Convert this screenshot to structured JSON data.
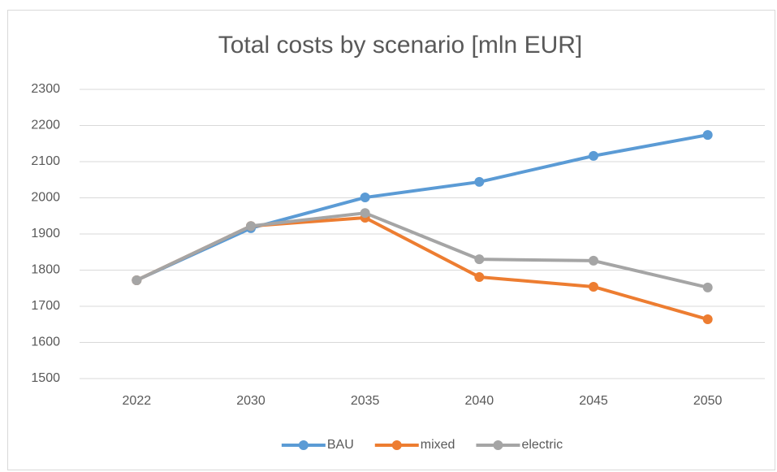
{
  "chart_data": {
    "type": "line",
    "title": "Total costs by scenario [mln EUR]",
    "categories": [
      "2022",
      "2030",
      "2035",
      "2040",
      "2045",
      "2050"
    ],
    "series": [
      {
        "name": "BAU",
        "color": "#5b9bd5",
        "values": [
          1772,
          1916,
          2001,
          2044,
          2116,
          2174
        ]
      },
      {
        "name": "mixed",
        "color": "#ed7d31",
        "values": [
          1772,
          1922,
          1945,
          1781,
          1754,
          1664
        ]
      },
      {
        "name": "electric",
        "color": "#a5a5a5",
        "values": [
          1772,
          1922,
          1958,
          1830,
          1826,
          1752
        ]
      }
    ],
    "ylim": [
      1500,
      2300
    ],
    "yticks": [
      1500,
      1600,
      1700,
      1800,
      1900,
      2000,
      2100,
      2200,
      2300
    ],
    "grid": true,
    "legend": "bottom"
  }
}
